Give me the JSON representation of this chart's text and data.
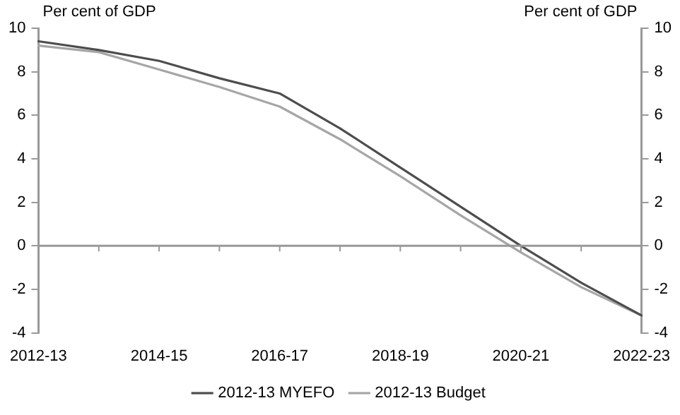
{
  "chart_data": {
    "type": "line",
    "ylabel": "Per cent of GDP",
    "y2label": "Per cent of GDP",
    "categories": [
      "2012-13",
      null,
      "2014-15",
      null,
      "2016-17",
      null,
      "2018-19",
      null,
      "2020-21",
      null,
      "2022-23"
    ],
    "series": [
      {
        "name": "2012-13 MYEFO",
        "color": "#4d4d4d",
        "values": [
          9.4,
          9.0,
          8.5,
          7.7,
          7.0,
          5.4,
          3.6,
          1.8,
          0.0,
          -1.7,
          -3.2
        ]
      },
      {
        "name": "2012-13 Budget",
        "color": "#a6a6a6",
        "values": [
          9.2,
          8.9,
          8.1,
          7.3,
          6.4,
          4.9,
          3.2,
          1.4,
          -0.3,
          -1.9,
          -3.2
        ]
      }
    ],
    "ylim": [
      -4,
      10
    ],
    "yticks": [
      -4,
      -2,
      0,
      2,
      4,
      6,
      8,
      10
    ],
    "y2lim": [
      -4,
      10
    ],
    "y2ticks": [
      -4,
      -2,
      0,
      2,
      4,
      6,
      8,
      10
    ],
    "legend": "bottom",
    "marker": "none",
    "line_style": "solid"
  }
}
